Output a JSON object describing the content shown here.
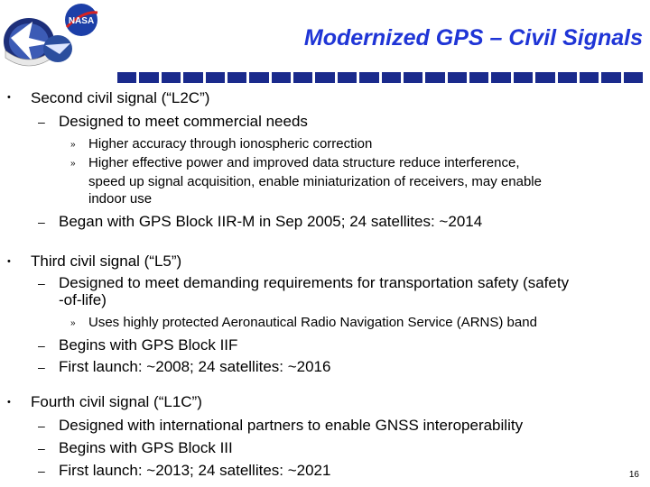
{
  "title": "Modernized GPS – Civil Signals",
  "logos": {
    "nasa": "NASA"
  },
  "bullets": {
    "l2c": "Second civil signal (“L2C”)",
    "l2c_sub1": "Designed to meet commercial needs",
    "l2c_sub1_a": "Higher accuracy through ionospheric correction",
    "l2c_sub1_b1": "Higher effective power and improved data structure reduce interference,",
    "l2c_sub1_b2": "speed up signal acquisition, enable miniaturization of receivers, may enable",
    "l2c_sub1_b3": "indoor use",
    "l2c_sub2": "Began with GPS Block IIR-M in Sep 2005;  24 satellites: ~2014",
    "l5": "Third civil signal (“L5”)",
    "l5_sub1a": "Designed to meet demanding requirements for transportation safety (safety",
    "l5_sub1b": "-of-life)",
    "l5_sub1_a": "Uses highly protected Aeronautical Radio Navigation Service (ARNS) band",
    "l5_sub2": "Begins with GPS Block IIF",
    "l5_sub3": "First launch: ~2008;  24 satellites: ~2016",
    "l1c": "Fourth civil signal (“L1C”)",
    "l1c_sub1": "Designed with international partners to enable GNSS interoperability",
    "l1c_sub2": "Begins with GPS Block III",
    "l1c_sub3": "First launch: ~2013;  24 satellites:  ~2021"
  },
  "markers": {
    "level1": "•",
    "level2": "–",
    "level3": "»"
  },
  "page_number": "16"
}
